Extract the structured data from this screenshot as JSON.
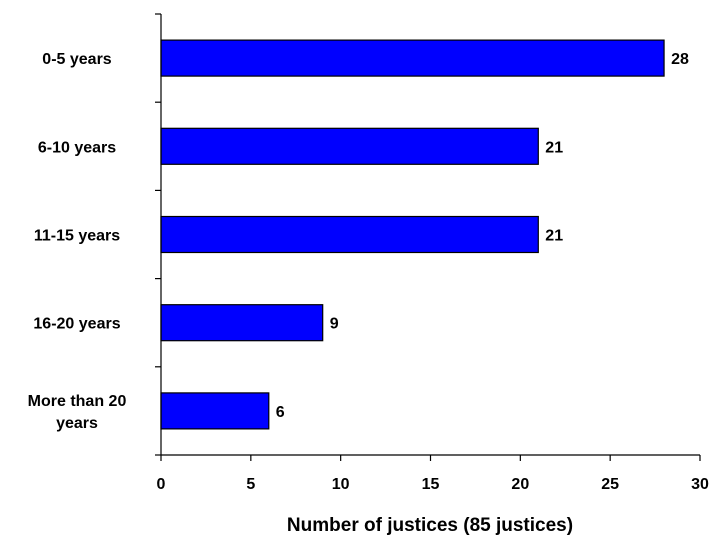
{
  "chart_data": {
    "type": "bar",
    "orientation": "horizontal",
    "title": "",
    "xlabel": "Number of justices (85 justices)",
    "ylabel": "",
    "categories": [
      [
        "0-5 years"
      ],
      [
        "6-10 years"
      ],
      [
        "11-15 years"
      ],
      [
        "16-20 years"
      ],
      [
        "More than 20",
        "years"
      ]
    ],
    "values": [
      28,
      21,
      21,
      9,
      6
    ],
    "data_labels": [
      "28",
      "21",
      "21",
      "9",
      "6"
    ],
    "xlim": [
      0,
      30
    ],
    "xticks": [
      "0",
      "5",
      "10",
      "15",
      "20",
      "25",
      "30"
    ],
    "grid": false,
    "legend": "none",
    "colors": {
      "bar_fill": "#0000ff",
      "bar_stroke": "#000000",
      "axis": "#000000"
    }
  }
}
